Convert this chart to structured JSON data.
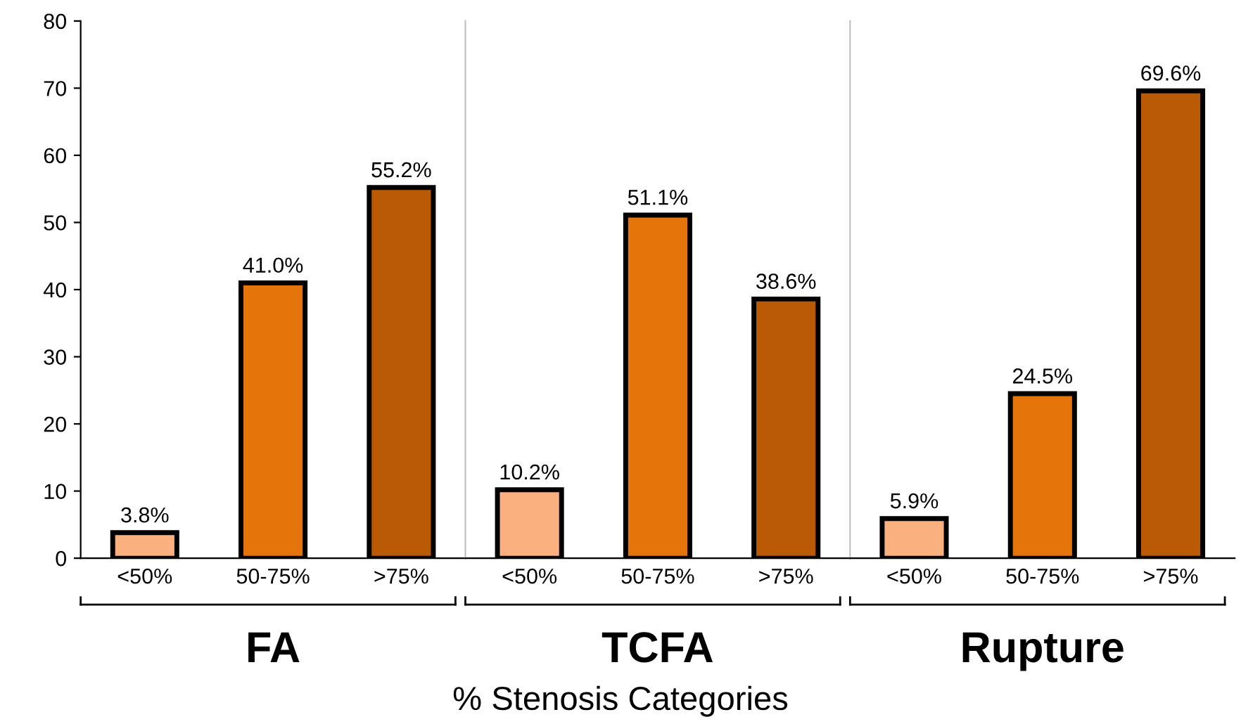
{
  "chart_data": [
    {
      "type": "bar",
      "xlabel": "FA",
      "categories": [
        "<50%",
        "50-75%",
        ">75%"
      ],
      "values": [
        3.8,
        41.0,
        55.2
      ],
      "colors": [
        "#fbb07f",
        "#e5750b",
        "#bb5a05"
      ],
      "value_labels": [
        "3.8%",
        "41.0%",
        "55.2%"
      ],
      "ylim": [
        0,
        80
      ],
      "yticks": [
        0,
        10,
        20,
        30,
        40,
        50,
        60,
        70,
        80
      ],
      "annotations": [
        "% Stenosis Categories"
      ]
    },
    {
      "type": "bar",
      "xlabel": "TCFA",
      "categories": [
        "<50%",
        "50-75%",
        ">75%"
      ],
      "values": [
        10.2,
        51.1,
        38.6
      ],
      "colors": [
        "#fbb07f",
        "#e5750b",
        "#bb5a05"
      ],
      "value_labels": [
        "10.2%",
        "51.1%",
        "38.6%"
      ],
      "ylim": [
        0,
        80
      ],
      "tick_labels": "x"
    },
    {
      "type": "bar",
      "xlabel": "Rupture",
      "categories": [
        "<50%",
        "50-75%",
        ">75%"
      ],
      "values": [
        5.9,
        24.5,
        69.6
      ],
      "colors": [
        "#fbb07f",
        "#e5750b",
        "#bb5a05"
      ],
      "value_labels": [
        "5.9%",
        "24.5%",
        "69.6%"
      ],
      "ylim": [
        0,
        80
      ],
      "tick_labels": "x"
    }
  ]
}
